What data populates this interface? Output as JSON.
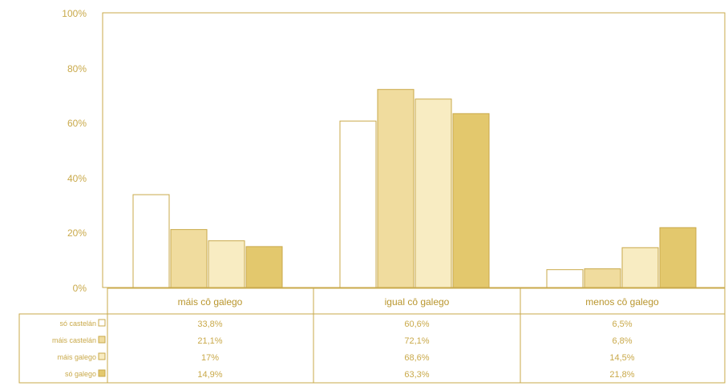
{
  "colors": {
    "frame": "#c9a94a",
    "text": "#c9a94a",
    "series": [
      "#ffffff",
      "#f0dc9e",
      "#f8ecc2",
      "#e3c86d"
    ],
    "series_stroke": "#c9a94a"
  },
  "chart_data": {
    "type": "bar",
    "categories": [
      "máis cô galego",
      "igual cô galego",
      "menos cô galego"
    ],
    "series": [
      {
        "name": "só castelán",
        "values": [
          33.8,
          60.6,
          6.5
        ]
      },
      {
        "name": "máis castelán",
        "values": [
          21.1,
          72.1,
          6.8
        ]
      },
      {
        "name": "máis galego",
        "values": [
          17,
          68.6,
          14.5
        ]
      },
      {
        "name": "só galego",
        "values": [
          14.9,
          63.3,
          21.8
        ]
      }
    ],
    "value_labels": [
      [
        "33,8%",
        "60,6%",
        "6,5%"
      ],
      [
        "21,1%",
        "72,1%",
        "6,8%"
      ],
      [
        "17%",
        "68,6%",
        "14,5%"
      ],
      [
        "14,9%",
        "63,3%",
        "21,8%"
      ]
    ],
    "yticks": [
      "0%",
      "20%",
      "40%",
      "60%",
      "80%",
      "100%"
    ],
    "ylim": [
      0,
      100
    ],
    "grid": false,
    "legend": "data table rows below chart"
  }
}
